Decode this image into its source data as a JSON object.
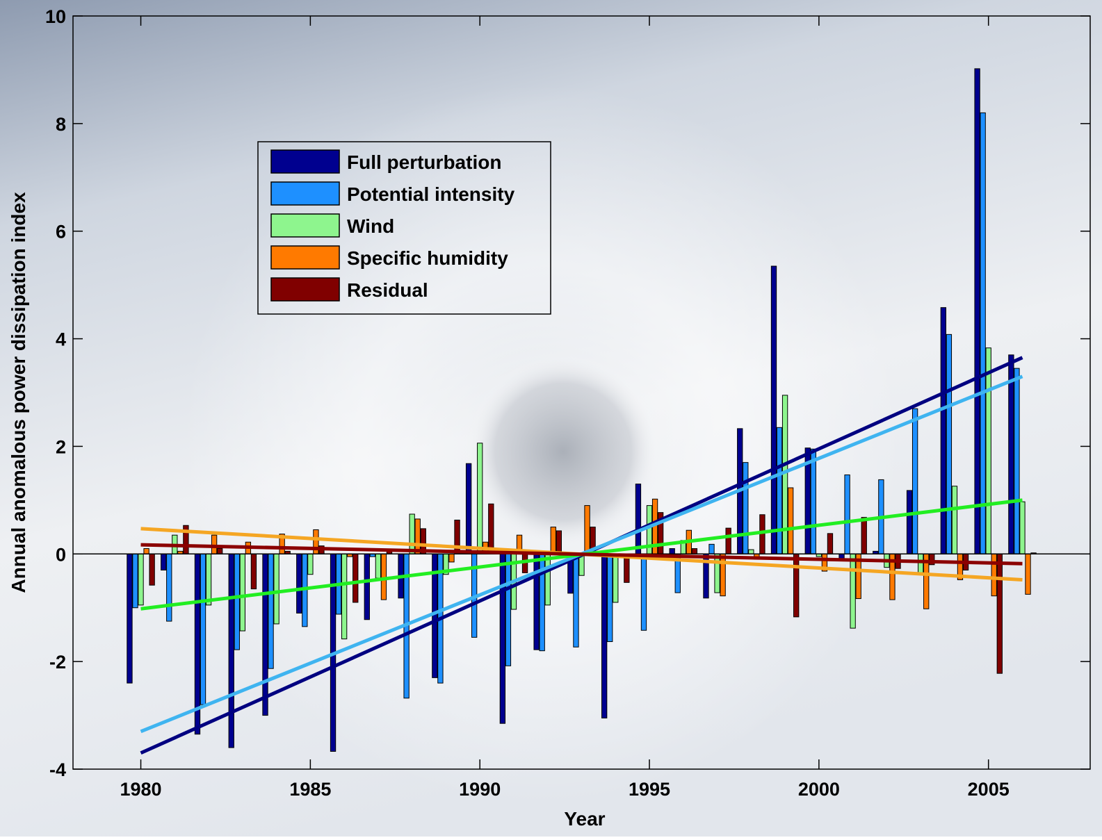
{
  "chart_data": {
    "type": "bar",
    "xlabel": "Year",
    "ylabel": "Annual anomalous power dissipation index",
    "x": [
      1980,
      1981,
      1982,
      1983,
      1984,
      1985,
      1986,
      1987,
      1988,
      1989,
      1990,
      1991,
      1992,
      1993,
      1994,
      1995,
      1996,
      1997,
      1998,
      1999,
      2000,
      2001,
      2002,
      2003,
      2004,
      2005,
      2006
    ],
    "xlim": [
      1978,
      2008
    ],
    "xticks": [
      1980,
      1985,
      1990,
      1995,
      2000,
      2005
    ],
    "ylim": [
      -4,
      10
    ],
    "yticks": [
      -4,
      -2,
      0,
      2,
      4,
      6,
      8,
      10
    ],
    "trend_x": [
      1980,
      2006
    ],
    "legend": "upper left",
    "series": [
      {
        "name": "Full perturbation",
        "color": "#00008f",
        "trend_color": "#000080",
        "values": [
          -2.4,
          -0.3,
          -3.35,
          -3.6,
          -3.0,
          -1.1,
          -3.67,
          -1.22,
          -0.82,
          -2.3,
          1.68,
          -3.15,
          -1.78,
          -0.73,
          -3.05,
          1.3,
          0.1,
          -0.82,
          2.33,
          5.35,
          1.97,
          -0.1,
          0.05,
          1.18,
          4.58,
          9.02,
          3.7
        ],
        "trend": [
          -3.7,
          3.65
        ]
      },
      {
        "name": "Potential intensity",
        "color": "#1e90ff",
        "trend_color": "#3fb4f0",
        "values": [
          -1.0,
          -1.25,
          -2.8,
          -1.78,
          -2.13,
          -1.35,
          -1.12,
          -0.05,
          -2.68,
          -2.4,
          -1.55,
          -2.08,
          -1.8,
          -1.73,
          -1.63,
          -1.42,
          -0.72,
          0.18,
          1.7,
          2.35,
          1.95,
          1.47,
          1.38,
          2.7,
          4.08,
          8.2,
          3.45
        ],
        "trend": [
          -3.3,
          3.3
        ]
      },
      {
        "name": "Wind",
        "color": "#8ef58e",
        "trend_color": "#22ee22",
        "values": [
          -0.95,
          0.35,
          -0.95,
          -1.43,
          -1.3,
          -0.38,
          -1.58,
          -0.45,
          0.74,
          -0.38,
          2.06,
          -1.03,
          -0.95,
          -0.4,
          -0.9,
          0.9,
          0.25,
          -0.72,
          0.08,
          2.95,
          -0.05,
          -1.38,
          -0.25,
          -0.35,
          1.26,
          3.83,
          0.97
        ],
        "trend": [
          -1.02,
          1.0
        ]
      },
      {
        "name": "Specific humidity",
        "color": "#ff7a00",
        "trend_color": "#f5a623",
        "values": [
          0.1,
          0.05,
          0.35,
          0.22,
          0.37,
          0.45,
          -0.05,
          -0.85,
          0.65,
          -0.15,
          0.22,
          0.35,
          0.5,
          0.9,
          -0.02,
          1.02,
          0.44,
          -0.78,
          -0.1,
          1.23,
          -0.32,
          -0.83,
          -0.85,
          -1.02,
          -0.48,
          -0.78,
          -0.75
        ],
        "trend": [
          0.47,
          -0.48
        ]
      },
      {
        "name": "Residual",
        "color": "#800000",
        "trend_color": "#8b0000",
        "values": [
          -0.58,
          0.53,
          0.1,
          -0.65,
          0.05,
          0.15,
          -0.9,
          0.05,
          0.47,
          0.63,
          0.93,
          -0.35,
          0.43,
          0.5,
          -0.53,
          0.77,
          0.1,
          0.48,
          0.73,
          -1.17,
          0.38,
          0.68,
          -0.27,
          -0.2,
          -0.3,
          -2.22,
          0.02
        ],
        "trend": [
          0.17,
          -0.18
        ]
      }
    ]
  }
}
